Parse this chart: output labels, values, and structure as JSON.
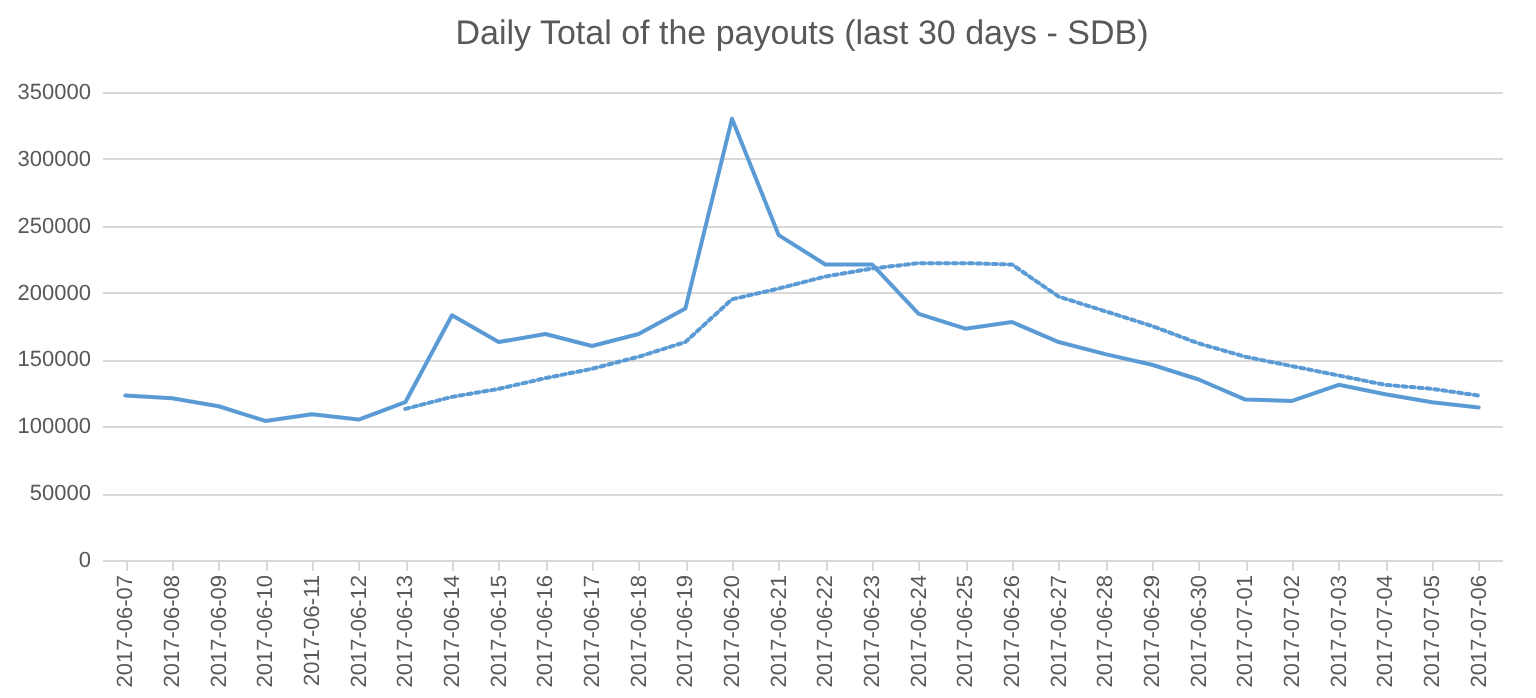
{
  "chart_data": {
    "type": "line",
    "title": "Daily Total of the payouts (last 30 days - SDB)",
    "categories": [
      "2017-06-07",
      "2017-06-08",
      "2017-06-09",
      "2017-06-10",
      "2017-06-11",
      "2017-06-12",
      "2017-06-13",
      "2017-06-14",
      "2017-06-15",
      "2017-06-16",
      "2017-06-17",
      "2017-06-18",
      "2017-06-19",
      "2017-06-20",
      "2017-06-21",
      "2017-06-22",
      "2017-06-23",
      "2017-06-24",
      "2017-06-25",
      "2017-06-26",
      "2017-06-27",
      "2017-06-28",
      "2017-06-29",
      "2017-06-30",
      "2017-07-01",
      "2017-07-02",
      "2017-07-03",
      "2017-07-04",
      "2017-07-05",
      "2017-07-06"
    ],
    "series": [
      {
        "color": "#5b9bd5",
        "line_style": "solid",
        "values": [
          123000,
          121000,
          115000,
          104000,
          109000,
          105000,
          118000,
          183000,
          163000,
          169000,
          160000,
          169000,
          188000,
          330000,
          243000,
          221000,
          221000,
          184000,
          173000,
          178000,
          163000,
          154000,
          146000,
          135000,
          120000,
          119000,
          131000,
          124000,
          118000,
          114000
        ]
      },
      {
        "color": "#5b9bd5",
        "line_style": "dotted",
        "values": [
          null,
          null,
          null,
          null,
          null,
          null,
          113000,
          122000,
          128000,
          136000,
          143000,
          152000,
          163000,
          195000,
          203000,
          212000,
          218000,
          222000,
          222000,
          221000,
          197000,
          186000,
          175000,
          162000,
          152000,
          145000,
          138000,
          131000,
          128000,
          123000
        ]
      }
    ],
    "ylim": [
      0,
      350000
    ],
    "yticks": [
      0,
      50000,
      100000,
      150000,
      200000,
      250000,
      300000,
      350000
    ],
    "grid": "y",
    "marker": "none"
  }
}
